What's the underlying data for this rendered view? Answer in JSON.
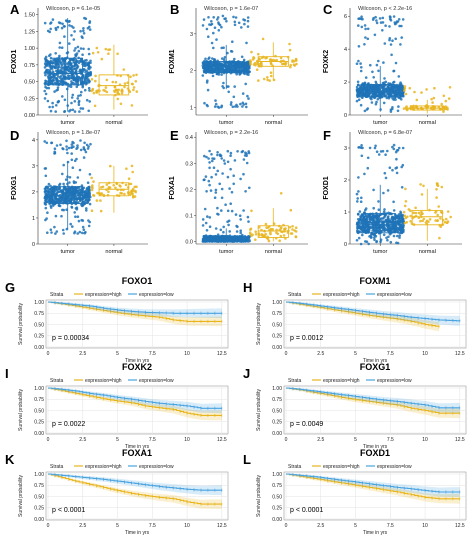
{
  "colors": {
    "tumor": "#1f73b7",
    "normal": "#e8b51e",
    "high": "#e8b51e",
    "low": "#4aa3df"
  },
  "chart_data": [
    {
      "letter": "A",
      "type": "scatter",
      "gene": "FOXO1",
      "annotation": "Wilcoxon, p = 6.1e-05",
      "categories": [
        "tumor",
        "normal"
      ],
      "ylim": [
        0,
        1.6
      ],
      "yticks": [
        "0.00",
        "0.25",
        "0.50",
        "0.75",
        "1.00",
        "1.25",
        "1.50"
      ],
      "ytick_values": [
        0,
        0.25,
        0.5,
        0.75,
        1.0,
        1.25,
        1.5
      ],
      "box": [
        {
          "q1": 0.45,
          "median": 0.62,
          "q3": 0.85
        },
        {
          "q1": 0.3,
          "median": 0.44,
          "q3": 0.6
        }
      ],
      "range": [
        [
          0.05,
          1.45
        ],
        [
          0.08,
          1.05
        ]
      ]
    },
    {
      "letter": "B",
      "type": "scatter",
      "gene": "FOXM1",
      "annotation": "Wilcoxon, p = 1.6e-07",
      "categories": [
        "tumor",
        "normal"
      ],
      "ylim": [
        0.8,
        3.7
      ],
      "yticks": [
        "1",
        "2",
        "3"
      ],
      "ytick_values": [
        1,
        2,
        3
      ],
      "box": [
        {
          "q1": 1.95,
          "median": 2.1,
          "q3": 2.25
        },
        {
          "q1": 2.12,
          "median": 2.25,
          "q3": 2.38
        }
      ],
      "range": [
        [
          1.0,
          3.5
        ],
        [
          1.7,
          2.9
        ]
      ]
    },
    {
      "letter": "C",
      "type": "scatter",
      "gene": "FOXK2",
      "annotation": "Wilcoxon, p < 2.2e-16",
      "categories": [
        "tumor",
        "normal"
      ],
      "ylim": [
        0,
        6.5
      ],
      "yticks": [
        "0",
        "2",
        "4",
        "6"
      ],
      "ytick_values": [
        0,
        2,
        4,
        6
      ],
      "box": [
        {
          "q1": 1.1,
          "median": 1.45,
          "q3": 1.85
        },
        {
          "q1": 0.3,
          "median": 0.42,
          "q3": 0.55
        }
      ],
      "range": [
        [
          0.2,
          6.0
        ],
        [
          0.1,
          1.8
        ]
      ]
    },
    {
      "letter": "D",
      "type": "scatter",
      "gene": "FOXG1",
      "annotation": "Wilcoxon, p = 1.8e-07",
      "categories": [
        "tumor",
        "normal"
      ],
      "ylim": [
        0,
        4.3
      ],
      "yticks": [
        "0",
        "1",
        "2",
        "3",
        "4"
      ],
      "ytick_values": [
        0,
        1,
        2,
        3,
        4
      ],
      "box": [
        {
          "q1": 1.55,
          "median": 1.85,
          "q3": 2.2
        },
        {
          "q1": 1.85,
          "median": 2.1,
          "q3": 2.35
        }
      ],
      "range": [
        [
          0.4,
          4.0
        ],
        [
          1.2,
          3.0
        ]
      ]
    },
    {
      "letter": "E",
      "type": "scatter",
      "gene": "FOXA1",
      "annotation": "Wilcoxon, p = 2.2e-16",
      "categories": [
        "tumor",
        "normal"
      ],
      "ylim": [
        -0.01,
        0.42
      ],
      "yticks": [
        "0.0",
        "0.1",
        "0.2",
        "0.3",
        "0.4"
      ],
      "ytick_values": [
        0,
        0.1,
        0.2,
        0.3,
        0.4
      ],
      "box": [
        {
          "q1": 0.0,
          "median": 0.005,
          "q3": 0.02
        },
        {
          "q1": 0.015,
          "median": 0.04,
          "q3": 0.06
        }
      ],
      "range": [
        [
          0.0,
          0.35
        ],
        [
          0.0,
          0.26
        ]
      ]
    },
    {
      "letter": "F",
      "type": "scatter",
      "gene": "FOXD1",
      "annotation": "Wilcoxon, p = 6.8e-07",
      "categories": [
        "tumor",
        "normal"
      ],
      "ylim": [
        0,
        3.5
      ],
      "yticks": [
        "0",
        "1",
        "2",
        "3"
      ],
      "ytick_values": [
        0,
        1,
        2,
        3
      ],
      "box": [
        {
          "q1": 0.35,
          "median": 0.6,
          "q3": 0.95
        },
        {
          "q1": 0.6,
          "median": 0.85,
          "q3": 1.05
        }
      ],
      "range": [
        [
          0.0,
          3.1
        ],
        [
          0.1,
          1.9
        ]
      ]
    },
    {
      "letter": "G",
      "type": "line",
      "title": "FOXO1",
      "pvalue": "p = 0.00034",
      "series": [
        {
          "name": "expression=high",
          "x": [
            0,
            1,
            2,
            3,
            4,
            5,
            6,
            7,
            8,
            9,
            10,
            11,
            12.5
          ],
          "y": [
            1.0,
            0.96,
            0.91,
            0.86,
            0.81,
            0.76,
            0.72,
            0.69,
            0.66,
            0.6,
            0.57,
            0.57,
            0.57
          ]
        },
        {
          "name": "expression=low",
          "x": [
            0,
            1,
            2,
            3,
            4,
            5,
            6,
            7,
            8,
            9,
            10,
            11,
            12.5
          ],
          "y": [
            1.0,
            0.97,
            0.94,
            0.91,
            0.86,
            0.82,
            0.79,
            0.77,
            0.76,
            0.75,
            0.75,
            0.75,
            0.75
          ]
        }
      ]
    },
    {
      "letter": "H",
      "type": "line",
      "title": "FOXM1",
      "pvalue": "p = 0.0012",
      "series": [
        {
          "name": "expression=high",
          "x": [
            0,
            1,
            2,
            3,
            4,
            5,
            6,
            7,
            8,
            9,
            10,
            11
          ],
          "y": [
            1.0,
            0.95,
            0.9,
            0.85,
            0.8,
            0.75,
            0.7,
            0.66,
            0.62,
            0.57,
            0.5,
            0.45
          ]
        },
        {
          "name": "expression=low",
          "x": [
            0,
            1,
            2,
            3,
            4,
            5,
            6,
            7,
            8,
            9,
            10,
            11,
            12.5
          ],
          "y": [
            1.0,
            0.97,
            0.93,
            0.89,
            0.85,
            0.81,
            0.77,
            0.73,
            0.7,
            0.66,
            0.63,
            0.6,
            0.58
          ]
        }
      ]
    },
    {
      "letter": "I",
      "type": "line",
      "title": "FOXK2",
      "pvalue": "p = 0.0022",
      "series": [
        {
          "name": "expression=high",
          "x": [
            0,
            1,
            2,
            3,
            4,
            5,
            6,
            7,
            8,
            9,
            10,
            11,
            12.5
          ],
          "y": [
            1.0,
            0.94,
            0.88,
            0.82,
            0.76,
            0.71,
            0.67,
            0.6,
            0.56,
            0.52,
            0.44,
            0.39,
            0.39
          ]
        },
        {
          "name": "expression=low",
          "x": [
            0,
            1,
            2,
            3,
            4,
            5,
            6,
            7,
            8,
            9,
            10,
            11,
            12.5
          ],
          "y": [
            1.0,
            0.97,
            0.93,
            0.88,
            0.84,
            0.79,
            0.75,
            0.7,
            0.66,
            0.63,
            0.6,
            0.55,
            0.55
          ]
        }
      ]
    },
    {
      "letter": "J",
      "type": "line",
      "title": "FOXG1",
      "pvalue": "p = 0.0049",
      "series": [
        {
          "name": "expression=high",
          "x": [
            0,
            1,
            2,
            3,
            4,
            5,
            6,
            7,
            8,
            9,
            10,
            11,
            12.5
          ],
          "y": [
            1.0,
            0.96,
            0.9,
            0.85,
            0.79,
            0.74,
            0.7,
            0.66,
            0.62,
            0.55,
            0.5,
            0.44,
            0.44
          ]
        },
        {
          "name": "expression=low",
          "x": [
            0,
            1,
            2,
            3,
            4,
            5,
            6,
            7,
            8,
            9,
            10,
            11,
            12.5
          ],
          "y": [
            1.0,
            0.97,
            0.93,
            0.89,
            0.85,
            0.81,
            0.77,
            0.73,
            0.7,
            0.66,
            0.62,
            0.56,
            0.56
          ]
        }
      ]
    },
    {
      "letter": "K",
      "type": "line",
      "title": "FOXA1",
      "pvalue": "p < 0.0001",
      "series": [
        {
          "name": "expression=high",
          "x": [
            0,
            1,
            2,
            3,
            4,
            5,
            6,
            7,
            8,
            9,
            10,
            11,
            12.5
          ],
          "y": [
            1.0,
            0.92,
            0.84,
            0.77,
            0.7,
            0.63,
            0.57,
            0.52,
            0.48,
            0.45,
            0.38,
            0.33,
            0.33
          ]
        },
        {
          "name": "expression=low",
          "x": [
            0,
            1,
            2,
            3,
            4,
            5,
            6,
            7,
            8,
            9,
            10,
            11,
            12.5
          ],
          "y": [
            1.0,
            0.97,
            0.94,
            0.91,
            0.88,
            0.84,
            0.8,
            0.76,
            0.72,
            0.69,
            0.66,
            0.64,
            0.64
          ]
        }
      ]
    },
    {
      "letter": "L",
      "type": "line",
      "title": "FOXD1",
      "pvalue": "p < 0.0001",
      "series": [
        {
          "name": "expression=high",
          "x": [
            0,
            1,
            2,
            3,
            4,
            5,
            6,
            7,
            8,
            9,
            10,
            11,
            12.5
          ],
          "y": [
            1.0,
            0.95,
            0.9,
            0.85,
            0.8,
            0.75,
            0.7,
            0.65,
            0.6,
            0.54,
            0.48,
            0.45,
            0.45
          ]
        },
        {
          "name": "expression=low",
          "x": [
            0,
            1,
            2,
            3,
            4,
            5,
            6,
            7,
            8,
            9,
            10,
            11,
            12.5
          ],
          "y": [
            1.0,
            0.97,
            0.94,
            0.9,
            0.86,
            0.82,
            0.78,
            0.74,
            0.7,
            0.67,
            0.63,
            0.6,
            0.6
          ]
        }
      ]
    }
  ],
  "km_common": {
    "legend_title": "Strata",
    "ylabel": "Survival probability",
    "xlabel": "Time in yrs",
    "xticks": [
      "0",
      "2.5",
      "5",
      "7.5",
      "10",
      "12.5"
    ],
    "xtick_values": [
      0,
      2.5,
      5,
      7.5,
      10,
      12.5
    ],
    "yticks": [
      "0.00",
      "0.25",
      "0.50",
      "0.75",
      "1.00"
    ],
    "ytick_values": [
      0,
      0.25,
      0.5,
      0.75,
      1.0
    ]
  }
}
